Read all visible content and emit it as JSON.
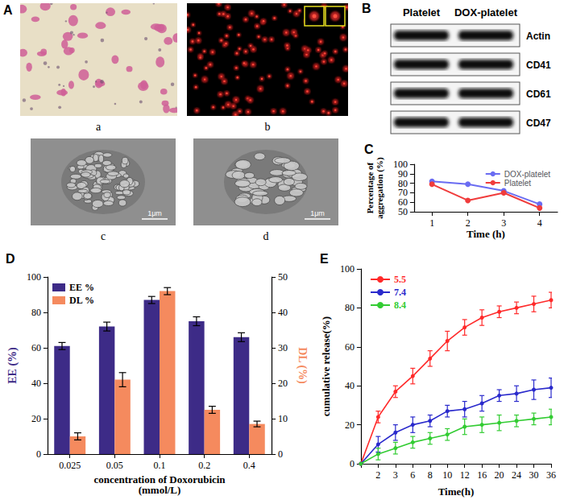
{
  "panel_A": {
    "label": "A",
    "images": [
      {
        "label": "a"
      },
      {
        "label": "b"
      },
      {
        "label": "c",
        "scale_bar": "1μm"
      },
      {
        "label": "d",
        "scale_bar": "1μm"
      }
    ]
  },
  "panel_B": {
    "label": "B",
    "columns": [
      "Platelet",
      "DOX-platelet"
    ],
    "rows": [
      "Actin",
      "CD41",
      "CD61",
      "CD47"
    ]
  },
  "chart_data": [
    {
      "panel": "C",
      "type": "line",
      "x_label": "Time (h)",
      "y_label": "Percentage of\naggregation (%)",
      "categories": [
        "1",
        "2",
        "3",
        "4"
      ],
      "ylim": [
        50,
        100
      ],
      "yticks": [
        50,
        60,
        70,
        80,
        90,
        100
      ],
      "grid": false,
      "legend": "top-right",
      "marker": "circle",
      "line_style": "solid",
      "series": [
        {
          "name": "DOX-platelet",
          "color": "#6a6cf2",
          "values": [
            82,
            79,
            72,
            58
          ]
        },
        {
          "name": "Platelet",
          "color": "#f03c3c",
          "values": [
            79,
            62,
            70,
            54
          ]
        }
      ]
    },
    {
      "panel": "D",
      "type": "bar",
      "x_label": "concentration of Doxorubicin\n(mmol/L)",
      "y_label": "EE (%)",
      "y2_label": "DL (%)",
      "categories": [
        "0.025",
        "0.05",
        "0.1",
        "0.2",
        "0.4"
      ],
      "ylim": [
        0,
        100
      ],
      "yticks": [
        0,
        20,
        40,
        60,
        80,
        100
      ],
      "y2lim": [
        0,
        50
      ],
      "y2ticks": [
        0,
        10,
        20,
        30,
        40,
        50
      ],
      "grid": false,
      "legend": "top-left",
      "series": [
        {
          "name": "EE %",
          "color": "#3d2b87",
          "values": [
            61,
            72,
            87,
            75,
            66
          ],
          "errors": [
            2,
            2.5,
            2,
            2.5,
            2.5
          ]
        },
        {
          "name": "DL %",
          "color": "#f58a5e",
          "axis": "y2",
          "values": [
            5,
            21,
            46,
            12.5,
            8.5
          ],
          "errors": [
            1,
            2,
            1,
            1,
            0.8
          ]
        }
      ]
    },
    {
      "panel": "E",
      "type": "line",
      "x_label": "Time(h)",
      "y_label": "cumulative release(%)",
      "categories": [
        null,
        "2",
        "3",
        "6",
        "8",
        "10",
        "12",
        "16",
        "20",
        "24",
        "30",
        "36"
      ],
      "ylim": [
        0,
        100
      ],
      "yticks": [
        0,
        20,
        40,
        60,
        80,
        100
      ],
      "grid": false,
      "legend": "top-left",
      "marker": "circle",
      "line_style": "solid",
      "series": [
        {
          "name": "5.5",
          "color": "#ff2a2a",
          "values": [
            0,
            24,
            37,
            45,
            54,
            63,
            70,
            75,
            78,
            80,
            82,
            84
          ],
          "errors": [
            0,
            3,
            3,
            4,
            4,
            5,
            4,
            4,
            3,
            3,
            4,
            4
          ]
        },
        {
          "name": "7.4",
          "color": "#2a2acc",
          "values": [
            0,
            10,
            16,
            20,
            22,
            27,
            28,
            31,
            35,
            36,
            38,
            39
          ],
          "errors": [
            0,
            4,
            4,
            4,
            3,
            3,
            4,
            4,
            3,
            4,
            5,
            5
          ]
        },
        {
          "name": "8.4",
          "color": "#33cc33",
          "values": [
            0,
            5,
            8,
            11,
            13,
            15,
            19,
            20,
            21,
            22,
            23,
            24
          ],
          "errors": [
            0,
            3,
            3,
            3,
            3,
            3,
            4,
            4,
            4,
            3,
            3,
            4
          ]
        }
      ]
    }
  ]
}
